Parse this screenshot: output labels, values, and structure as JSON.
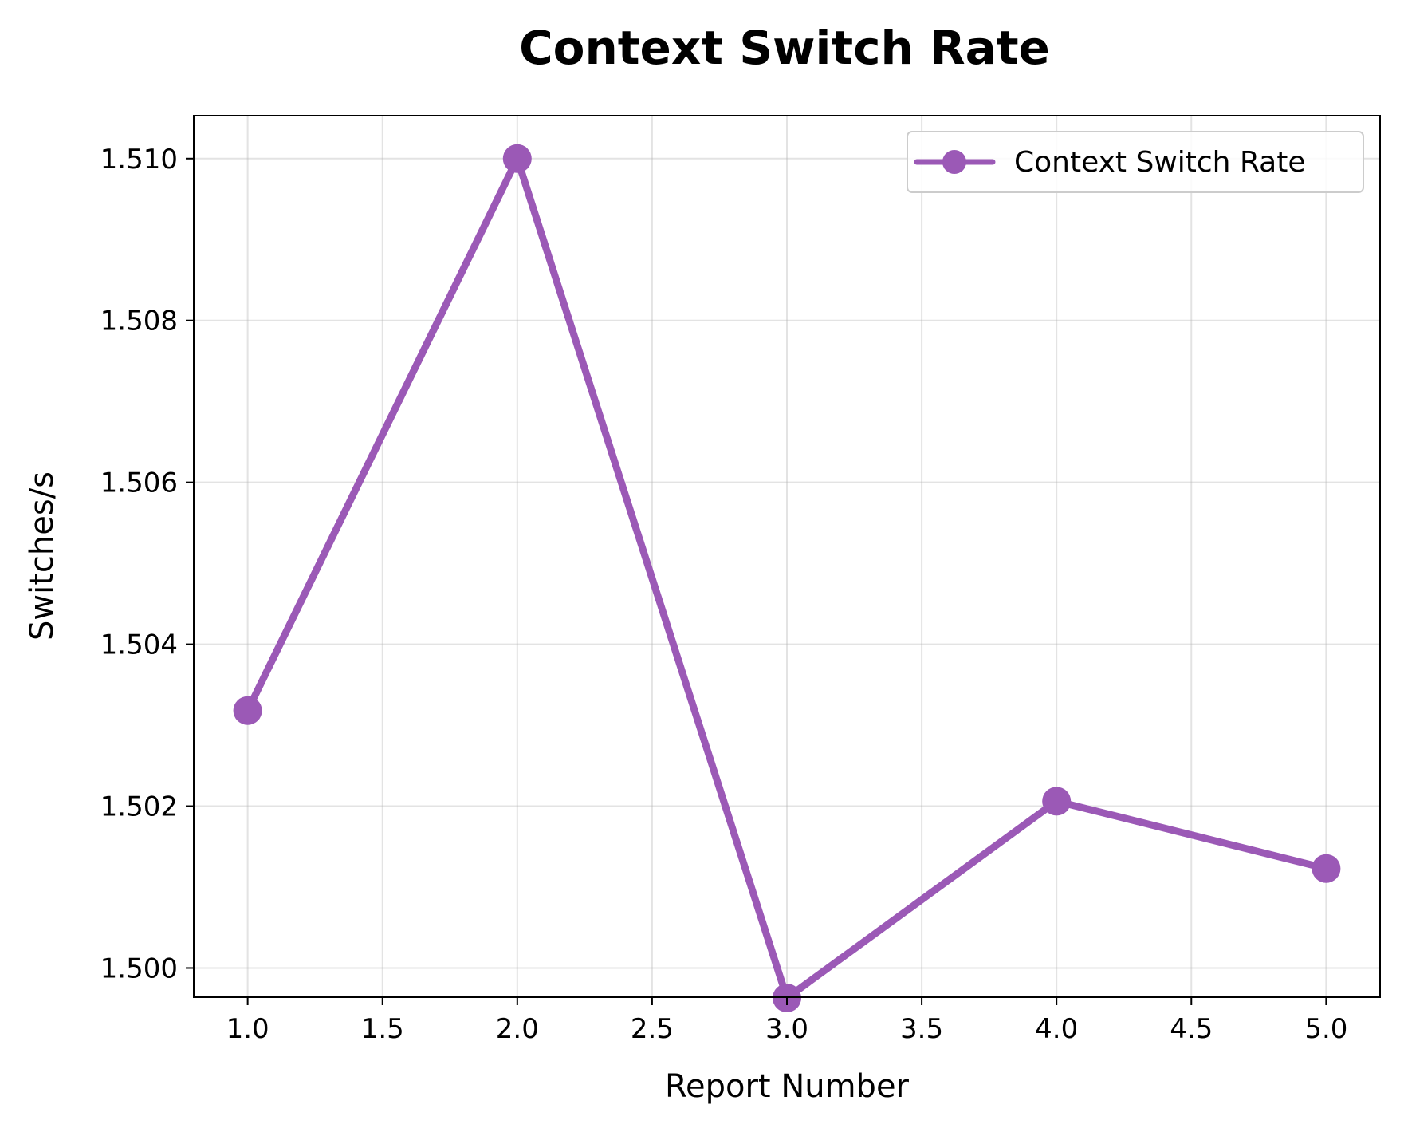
{
  "chart_data": {
    "type": "line",
    "title": "Context Switch Rate",
    "xlabel": "Report Number",
    "ylabel": "Switches/s",
    "x": [
      1,
      2,
      3,
      4,
      5
    ],
    "xlim": [
      0.8,
      5.2
    ],
    "ylim": [
      1.49964,
      1.51053
    ],
    "xticks": [
      "1.0",
      "1.5",
      "2.0",
      "2.5",
      "3.0",
      "3.5",
      "4.0",
      "4.5",
      "5.0"
    ],
    "yticks": [
      "1.500",
      "1.502",
      "1.504",
      "1.506",
      "1.508",
      "1.510"
    ],
    "grid": true,
    "legend_position": "top-right",
    "series": [
      {
        "name": "Context Switch Rate",
        "color": "#9b59b6",
        "marker": "circle",
        "values": [
          1.50318,
          1.51,
          1.49963,
          1.50206,
          1.50123
        ]
      }
    ]
  }
}
